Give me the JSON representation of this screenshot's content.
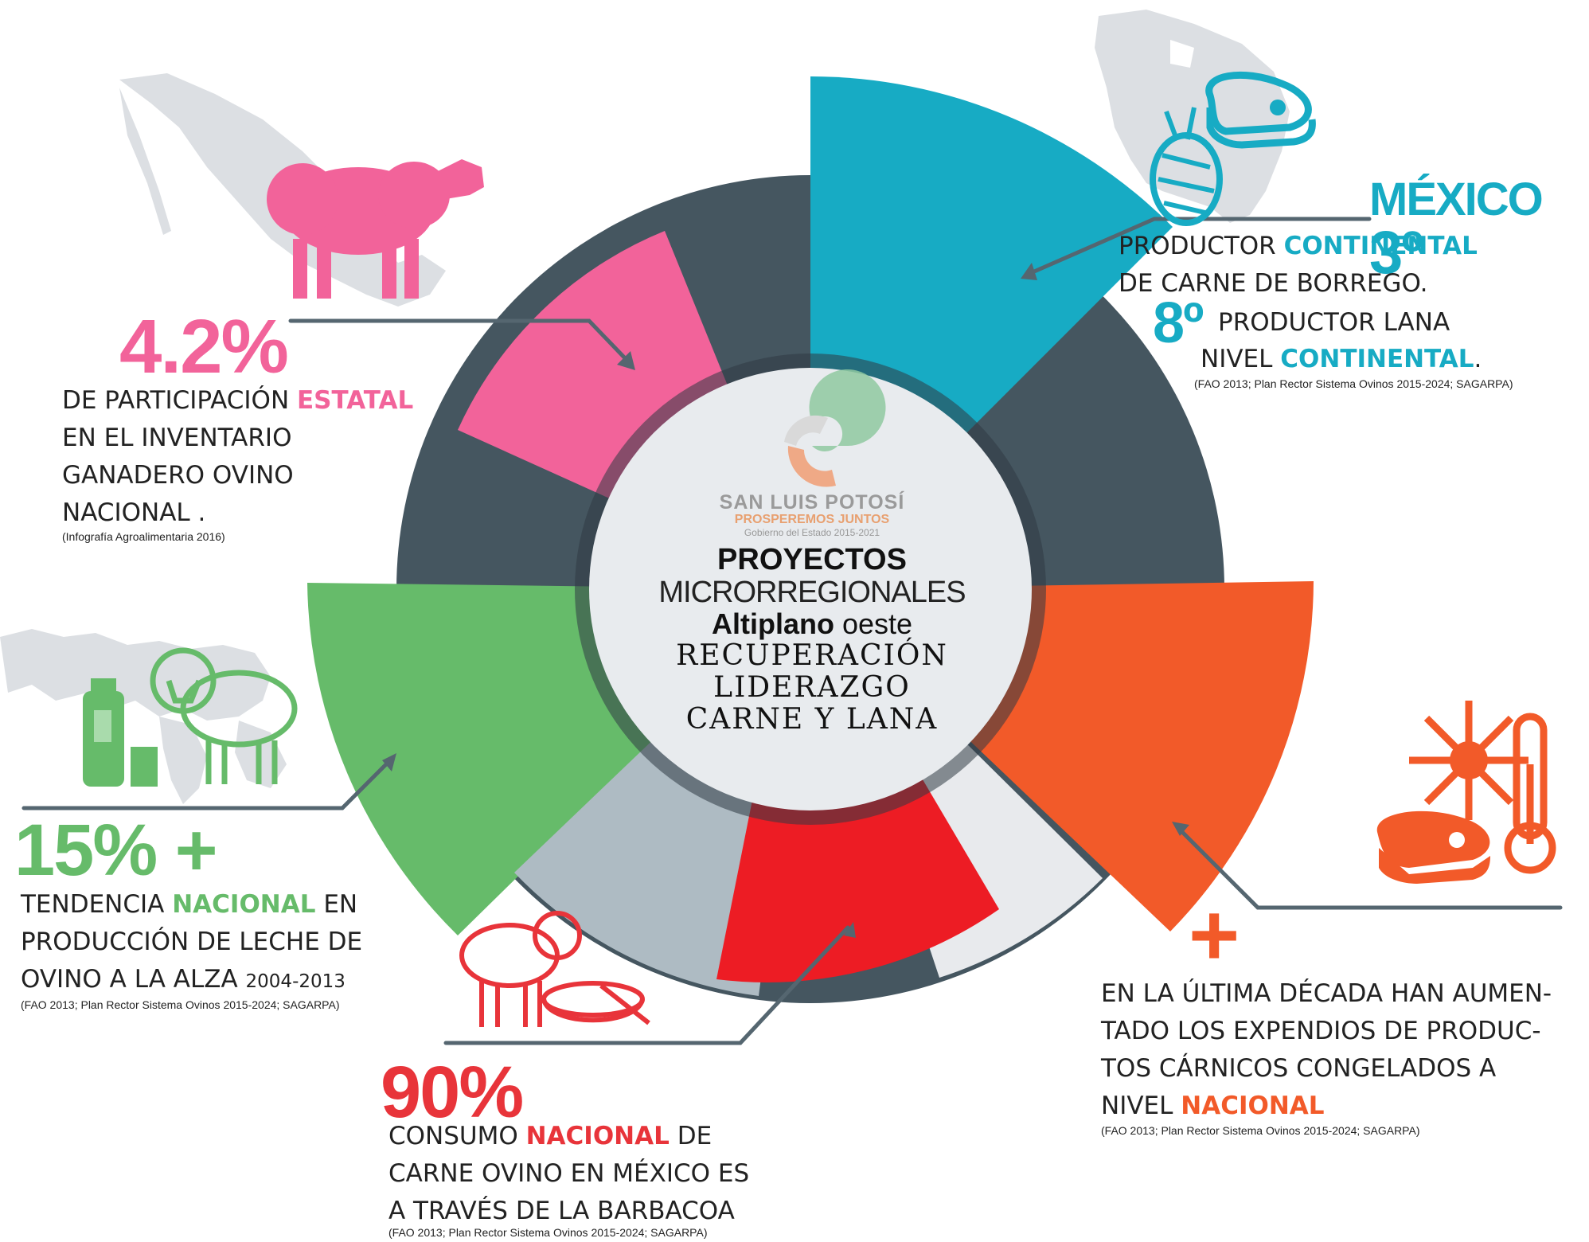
{
  "center": {
    "logo_name": "SAN LUIS POTOSÍ",
    "logo_slogan": "PROSPEREMOS JUNTOS",
    "logo_gov": "Gobierno del Estado 2015-2021",
    "line1": "PROYECTOS",
    "line2": "MICRORREGIONALES",
    "line3_bold": "Altiplano",
    "line3_rest": " oeste",
    "line4": "RECUPERACIÓN",
    "line5": "LIDERAZGO",
    "line6": "CARNE Y LANA"
  },
  "stat_estatal": {
    "value": "4.2%",
    "pre": "DE PARTICIPACIÓN ",
    "highlight": "ESTATAL",
    "line2": "EN EL INVENTARIO",
    "line3": "GANADERO OVINO",
    "line4": "NACIONAL .",
    "source": "(Infografía Agroalimentaria 2016)"
  },
  "stat_mexico": {
    "title": "MÉXICO",
    "rank": "3º",
    "line1_pre": "PRODUCTOR  ",
    "line1_hl": "CONTINENTAL",
    "line2": "DE CARNE DE BORREGO.",
    "rank2": "8º",
    "line3": "PRODUCTOR  LANA",
    "line4_pre": "NIVEL ",
    "line4_hl": "CONTINENTAL",
    "line4_post": ".",
    "source": "(FAO 2013; Plan Rector Sistema Ovinos 2015-2024; SAGARPA)"
  },
  "stat_leche": {
    "value": "15% +",
    "pre": "TENDENCIA ",
    "highlight": "NACIONAL",
    "post": "  EN",
    "line2": "PRODUCCIÓN DE LECHE DE",
    "line3": "OVINO A LA ALZA ",
    "years": "2004-2013",
    "source": "(FAO 2013; Plan Rector Sistema Ovinos 2015-2024; SAGARPA)"
  },
  "stat_barbacoa": {
    "value": "90%",
    "pre": "CONSUMO ",
    "highlight": "NACIONAL",
    "post": " DE",
    "line2": "CARNE OVINO EN MÉXICO ES",
    "line3": "A TRAVÉS DE LA BARBACOA",
    "source": "(FAO 2013; Plan Rector Sistema Ovinos 2015-2024; SAGARPA)"
  },
  "stat_congelados": {
    "symbol": "+",
    "line1": "EN LA ÚLTIMA DÉCADA HAN AUMEN-",
    "line2": "TADO LOS EXPENDIOS DE PRODUC-",
    "line3": "TOS CÁRNICOS CONGELADOS A",
    "line4_pre": "NIVEL ",
    "line4_hl": "NACIONAL",
    "source": "(FAO 2013; Plan Rector Sistema Ovinos 2015-2024; SAGARPA)"
  },
  "colors": {
    "dark": "#455660",
    "pink": "#f2639a",
    "teal": "#17abc4",
    "green": "#66bb6a",
    "red": "#ed1c24",
    "orange": "#f25a29",
    "light": "#e8eaed",
    "gray": "#aebbc3",
    "map": "#dcdfe3"
  }
}
